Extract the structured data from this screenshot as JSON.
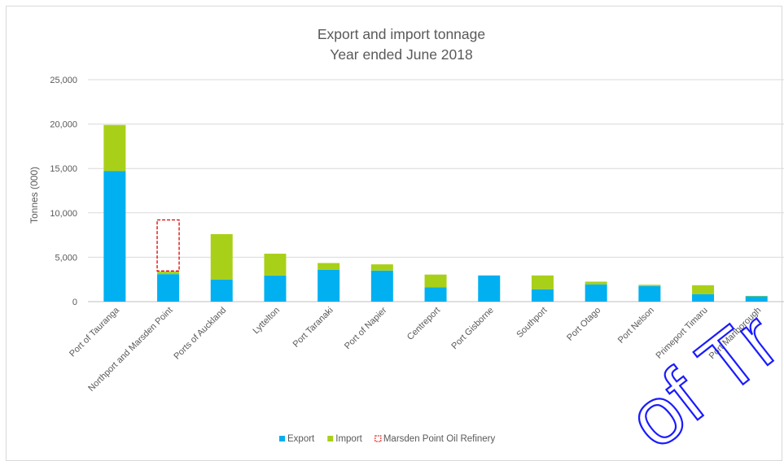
{
  "chart_data": {
    "type": "bar",
    "stacked": true,
    "title": "Export and import tonnage",
    "subtitle": "Year ended June 2018",
    "xlabel": "",
    "ylabel": "Tonnes (000)",
    "ylim": [
      0,
      25000
    ],
    "yticks": [
      0,
      5000,
      10000,
      15000,
      20000,
      25000
    ],
    "ytick_labels": [
      "0",
      "5,000",
      "10,000",
      "15,000",
      "20,000",
      "25,000"
    ],
    "grid": true,
    "legend_position": "bottom",
    "categories": [
      "Port of Tauranga",
      "Northport and Marsden Point",
      "Ports of Auckland",
      "Lyttelton",
      "Port Taranaki",
      "Port of Napier",
      "Centreport",
      "Port Gisborne",
      "Southport",
      "Port Otago",
      "Port Nelson",
      "Primeport Timaru",
      "Port Marlborough"
    ],
    "series": [
      {
        "name": "Export",
        "color": "#00b0f0",
        "values": [
          14700,
          3100,
          2500,
          2950,
          3600,
          3500,
          1600,
          2950,
          1400,
          1950,
          1750,
          850,
          600
        ]
      },
      {
        "name": "Import",
        "color": "#a9d018",
        "values": [
          5200,
          300,
          5100,
          2450,
          750,
          700,
          1450,
          0,
          1550,
          300,
          150,
          1000,
          50
        ]
      }
    ],
    "annotation": {
      "name": "Marsden Point Oil Refinery",
      "category": "Northport and Marsden Point",
      "ymin": 3450,
      "ymax": 9200,
      "color": "#e00000",
      "style": "dashed"
    }
  },
  "watermark": {
    "text": "of Tr",
    "color": "#1a1aff"
  }
}
